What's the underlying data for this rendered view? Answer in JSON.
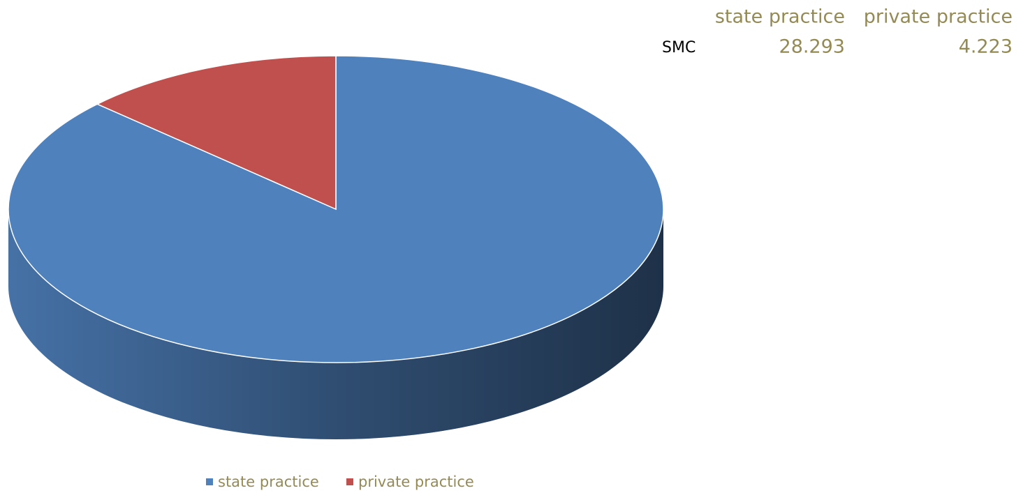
{
  "chart_data": {
    "type": "pie",
    "categories": [
      "state practice",
      "private practice"
    ],
    "row_label": "SMC",
    "values": [
      28.293,
      4.223
    ],
    "colors": [
      "#4f81bd",
      "#c0504d"
    ]
  }
}
